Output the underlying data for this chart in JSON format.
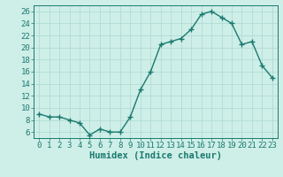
{
  "x": [
    0,
    1,
    2,
    3,
    4,
    5,
    6,
    7,
    8,
    9,
    10,
    11,
    12,
    13,
    14,
    15,
    16,
    17,
    18,
    19,
    20,
    21,
    22,
    23
  ],
  "y": [
    9,
    8.5,
    8.5,
    8,
    7.5,
    5.5,
    6.5,
    6,
    6,
    8.5,
    13,
    16,
    20.5,
    21,
    21.5,
    23,
    25.5,
    26,
    25,
    24,
    20.5,
    21,
    17,
    15
  ],
  "line_color": "#1a7a6e",
  "marker": "+",
  "marker_size": 4,
  "bg_color": "#ceeee8",
  "grid_color": "#aed8d2",
  "xlabel": "Humidex (Indice chaleur)",
  "xlim": [
    -0.5,
    23.5
  ],
  "ylim": [
    5,
    27
  ],
  "yticks": [
    6,
    8,
    10,
    12,
    14,
    16,
    18,
    20,
    22,
    24,
    26
  ],
  "xticks": [
    0,
    1,
    2,
    3,
    4,
    5,
    6,
    7,
    8,
    9,
    10,
    11,
    12,
    13,
    14,
    15,
    16,
    17,
    18,
    19,
    20,
    21,
    22,
    23
  ],
  "tick_color": "#1a7a6e",
  "axis_color": "#1a7a6e",
  "tick_fontsize": 6.5,
  "xlabel_fontsize": 7.5,
  "linewidth": 1.0,
  "marker_edge_width": 1.0
}
